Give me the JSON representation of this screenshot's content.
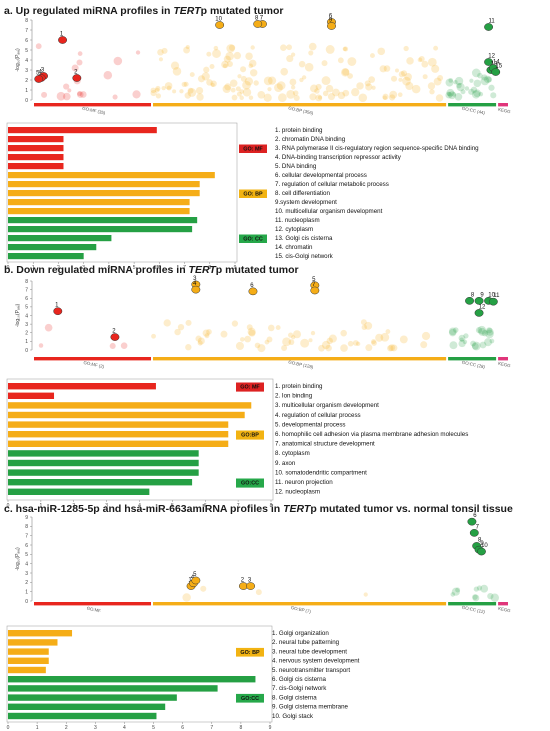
{
  "colors": {
    "mf": "#e8261e",
    "bp": "#f5ad17",
    "cc": "#25a044",
    "kegg": "#e0357a",
    "mf_label": "#dd2222",
    "bp_label": "#f2b312",
    "cc_label": "#26a84a"
  },
  "panels": [
    {
      "title_pre": "a. Up regulated miRNA profiles in ",
      "title_em": "TERT",
      "title_post": "p mutated tumor",
      "manhattan": {
        "ylabel": "-log₁₀(Pₐₑⱼ)",
        "yticks": [
          "0",
          "1",
          "2",
          "3",
          "4",
          "5",
          "6",
          "7",
          "8"
        ],
        "ymax": 8,
        "segments": [
          {
            "label": "GO:MF (35)",
            "color": "mf"
          },
          {
            "label": "GO:BP (356)",
            "color": "bp"
          },
          {
            "label": "GO:CC (44)",
            "color": "cc"
          },
          {
            "label": "KEGG",
            "color": "kegg"
          }
        ],
        "points": [
          {
            "n": "1",
            "x": 0.06,
            "y": 6,
            "c": "mf"
          },
          {
            "n": "2",
            "x": 0.09,
            "y": 2.2,
            "c": "mf"
          },
          {
            "n": "3",
            "x": 0.02,
            "y": 2.4,
            "c": "mf"
          },
          {
            "n": "4",
            "x": 0.015,
            "y": 2.2,
            "c": "mf"
          },
          {
            "n": "5",
            "x": 0.01,
            "y": 2.1,
            "c": "mf"
          },
          {
            "n": "10",
            "x": 0.39,
            "y": 7.5,
            "c": "bp"
          },
          {
            "n": "7",
            "x": 0.48,
            "y": 7.6,
            "c": "bp"
          },
          {
            "n": "8",
            "x": 0.47,
            "y": 7.6,
            "c": "bp"
          },
          {
            "n": "6",
            "x": 0.625,
            "y": 7.8,
            "c": "bp"
          },
          {
            "n": "9",
            "x": 0.625,
            "y": 7.4,
            "c": "bp"
          },
          {
            "n": "11",
            "x": 0.955,
            "y": 7.3,
            "c": "cc"
          },
          {
            "n": "12",
            "x": 0.955,
            "y": 3.8,
            "c": "cc"
          },
          {
            "n": "13",
            "x": 0.96,
            "y": 3,
            "c": "cc"
          },
          {
            "n": "14",
            "x": 0.965,
            "y": 3.2,
            "c": "cc"
          },
          {
            "n": "15",
            "x": 0.97,
            "y": 2.8,
            "c": "cc"
          }
        ]
      },
      "bars": {
        "xticks": [
          "0",
          "1",
          "2",
          "3",
          "4",
          "5",
          "6",
          "7",
          "8",
          "9"
        ],
        "xmax": 9,
        "values": [
          5.9,
          2.2,
          2.2,
          2.2,
          2.2,
          8.2,
          7.6,
          7.6,
          7.2,
          7.2,
          7.5,
          7.3,
          4.1,
          3.5,
          3.0
        ],
        "groups": [
          "mf",
          "mf",
          "mf",
          "mf",
          "mf",
          "bp",
          "bp",
          "bp",
          "bp",
          "bp",
          "cc",
          "cc",
          "cc",
          "cc",
          "cc"
        ],
        "labels": [
          "1. protein binding",
          "2. chromatin DNA binding",
          "3. RNA polymerase II cis-regulatory region sequence-specific DNA binding",
          "4. DNA-binding transcription repressor activity",
          "5. DNA binding",
          "6. cellular developmental process",
          "7. regulation of cellular metabolic process",
          "8. cell differentiation",
          "9.system development",
          "10. multicellular organism development",
          "11. nucleoplasm",
          "12. cytoplasm",
          "13. Golgi cis cisterna",
          "14. chromatin",
          "15. cis-Golgi network"
        ],
        "categories": [
          {
            "text": "GO: MF",
            "color": "mf_label",
            "row": 2
          },
          {
            "text": "GO: BP",
            "color": "bp_label",
            "row": 7
          },
          {
            "text": "GO: CC",
            "color": "cc_label",
            "row": 12
          }
        ]
      }
    },
    {
      "title_pre": "b. Down regulated miRNA profiles in ",
      "title_em": "TERT",
      "title_post": "p mutated tumor",
      "manhattan": {
        "ylabel": "-log₁₀(Pₐₑⱼ)",
        "yticks": [
          "0",
          "1",
          "2",
          "3",
          "4",
          "5",
          "6",
          "7",
          "8"
        ],
        "ymax": 8,
        "segments": [
          {
            "label": "GO:MF (2)",
            "color": "mf"
          },
          {
            "label": "GO:BP (128)",
            "color": "bp"
          },
          {
            "label": "GO:CC (28)",
            "color": "cc"
          },
          {
            "label": "KEGG",
            "color": "kegg"
          }
        ],
        "points": [
          {
            "n": "1",
            "x": 0.05,
            "y": 4.5,
            "c": "mf"
          },
          {
            "n": "2",
            "x": 0.17,
            "y": 1.5,
            "c": "mf"
          },
          {
            "n": "3",
            "x": 0.34,
            "y": 7.6,
            "c": "bp"
          },
          {
            "n": "4",
            "x": 0.34,
            "y": 7.0,
            "c": "bp"
          },
          {
            "n": "6",
            "x": 0.46,
            "y": 6.8,
            "c": "bp"
          },
          {
            "n": "5",
            "x": 0.59,
            "y": 7.5,
            "c": "bp"
          },
          {
            "n": "7",
            "x": 0.59,
            "y": 6.9,
            "c": "bp"
          },
          {
            "n": "8",
            "x": 0.915,
            "y": 5.7,
            "c": "cc"
          },
          {
            "n": "9",
            "x": 0.935,
            "y": 5.7,
            "c": "cc"
          },
          {
            "n": "10",
            "x": 0.955,
            "y": 5.7,
            "c": "cc"
          },
          {
            "n": "11",
            "x": 0.965,
            "y": 5.6,
            "c": "cc"
          },
          {
            "n": "12",
            "x": 0.935,
            "y": 4.3,
            "c": "cc"
          }
        ]
      },
      "bars": {
        "xticks": [
          "0",
          "1",
          "2",
          "3",
          "4",
          "5",
          "6",
          "7",
          "8"
        ],
        "xmax": 8,
        "values": [
          4.5,
          1.4,
          7.4,
          7.2,
          6.7,
          6.7,
          6.7,
          5.8,
          5.8,
          5.8,
          5.6,
          4.3
        ],
        "groups": [
          "mf",
          "mf",
          "bp",
          "bp",
          "bp",
          "bp",
          "bp",
          "cc",
          "cc",
          "cc",
          "cc",
          "cc"
        ],
        "labels": [
          "1. protein binding",
          "2. Ion binding",
          "3. multicellular organism development",
          "4. regulation of cellular process",
          "5. developmental process",
          "6. homophilic cell adhesion via plasma membrane adhesion molecules",
          "7. anatomical structure development",
          "8. cytoplasm",
          "9. axon",
          "10. somatodendritic compartment",
          "11. neuron projection",
          "12. nucleoplasm"
        ],
        "categories": [
          {
            "text": "GO: MF",
            "color": "mf_label",
            "row": 0
          },
          {
            "text": "GO:BP",
            "color": "bp_label",
            "row": 5
          },
          {
            "text": "GO:CC",
            "color": "cc_label",
            "row": 10
          }
        ]
      }
    },
    {
      "title_pre": "c. hsa-miR-1285-5p and hsa-miR-663amiRNA profiles in ",
      "title_em": "TERT",
      "title_post": "p mutated tumor vs. normal tonsil tissue",
      "manhattan": {
        "ylabel": "-log₁₀(Pₐₑⱼ)",
        "yticks": [
          "0",
          "1",
          "2",
          "3",
          "4",
          "5",
          "6",
          "7",
          "8",
          "9"
        ],
        "ymax": 9,
        "segments": [
          {
            "label": "GO:MF",
            "color": "mf"
          },
          {
            "label": "GO:BP (7)",
            "color": "bp"
          },
          {
            "label": "GO:CC (12)",
            "color": "cc"
          },
          {
            "label": "KEGG",
            "color": "kegg"
          }
        ],
        "points": [
          {
            "n": "1",
            "x": 0.33,
            "y": 1.6,
            "c": "bp"
          },
          {
            "n": "2",
            "x": 0.44,
            "y": 1.6,
            "c": "bp"
          },
          {
            "n": "3",
            "x": 0.455,
            "y": 1.6,
            "c": "bp"
          },
          {
            "n": "4",
            "x": 0.335,
            "y": 1.9,
            "c": "bp"
          },
          {
            "n": "5",
            "x": 0.34,
            "y": 2.2,
            "c": "bp"
          },
          {
            "n": "6",
            "x": 0.92,
            "y": 8.5,
            "c": "cc"
          },
          {
            "n": "7",
            "x": 0.925,
            "y": 7.3,
            "c": "cc"
          },
          {
            "n": "8",
            "x": 0.93,
            "y": 5.9,
            "c": "cc"
          },
          {
            "n": "9",
            "x": 0.935,
            "y": 5.5,
            "c": "cc"
          },
          {
            "n": "10",
            "x": 0.94,
            "y": 5.3,
            "c": "cc"
          }
        ]
      },
      "bars": {
        "xticks": [
          "0",
          "1",
          "2",
          "3",
          "4",
          "5",
          "6",
          "7",
          "8",
          "9"
        ],
        "xmax": 9,
        "values": [
          2.2,
          1.7,
          1.4,
          1.4,
          1.3,
          8.5,
          7.2,
          5.8,
          5.4,
          5.1
        ],
        "groups": [
          "bp",
          "bp",
          "bp",
          "bp",
          "bp",
          "cc",
          "cc",
          "cc",
          "cc",
          "cc"
        ],
        "labels": [
          "1. Golgi organization",
          "2. neural tube patterning",
          "3. neural tube development",
          "4. nervous system development",
          "5. neurotransmitter transport",
          "6. Golgi cis cisterna",
          "7. cis-Golgi network",
          "8. Golgi cisterna",
          "9. Golgi cisterna membrane",
          "10. Golgi stack"
        ],
        "categories": [
          {
            "text": "GO: BP",
            "color": "bp_label",
            "row": 2
          },
          {
            "text": "GO:CC",
            "color": "cc_label",
            "row": 7
          }
        ]
      }
    }
  ],
  "chart_data": [
    {
      "type": "scatter",
      "title": "a. Up regulated miRNA profiles in TERTp mutated tumor",
      "ylabel": "-log10(Padj)",
      "ylim": [
        0,
        8
      ],
      "x": [
        "GO:MF (35)",
        "GO:BP (356)",
        "GO:CC (44)",
        "KEGG"
      ]
    },
    {
      "type": "bar",
      "title": "a. Up regulated miRNA profiles in TERTp mutated tumor",
      "xlim": [
        0,
        9
      ],
      "categories": [
        "1",
        "2",
        "3",
        "4",
        "5",
        "6",
        "7",
        "8",
        "9",
        "10",
        "11",
        "12",
        "13",
        "14",
        "15"
      ],
      "values": [
        5.9,
        2.2,
        2.2,
        2.2,
        2.2,
        8.2,
        7.6,
        7.6,
        7.2,
        7.2,
        7.5,
        7.3,
        4.1,
        3.5,
        3.0
      ]
    },
    {
      "type": "scatter",
      "title": "b. Down regulated miRNA profiles in TERTp mutated tumor",
      "ylabel": "-log10(Padj)",
      "ylim": [
        0,
        8
      ],
      "x": [
        "GO:MF (2)",
        "GO:BP (128)",
        "GO:CC (28)",
        "KEGG"
      ]
    },
    {
      "type": "bar",
      "title": "b. Down regulated miRNA profiles in TERTp mutated tumor",
      "xlim": [
        0,
        8
      ],
      "categories": [
        "1",
        "2",
        "3",
        "4",
        "5",
        "6",
        "7",
        "8",
        "9",
        "10",
        "11",
        "12"
      ],
      "values": [
        4.5,
        1.4,
        7.4,
        7.2,
        6.7,
        6.7,
        6.7,
        5.8,
        5.8,
        5.8,
        5.6,
        4.3
      ]
    },
    {
      "type": "scatter",
      "title": "c. hsa-miR-1285-5p and hsa-miR-663amiRNA profiles in TERTp mutated tumor vs. normal tonsil tissue",
      "ylabel": "-log10(Padj)",
      "ylim": [
        0,
        9
      ],
      "x": [
        "GO:MF",
        "GO:BP (7)",
        "GO:CC (12)",
        "KEGG"
      ]
    },
    {
      "type": "bar",
      "title": "c. hsa-miR-1285-5p and hsa-miR-663amiRNA profiles in TERTp mutated tumor vs. normal tonsil tissue",
      "xlim": [
        0,
        9
      ],
      "categories": [
        "1",
        "2",
        "3",
        "4",
        "5",
        "6",
        "7",
        "8",
        "9",
        "10"
      ],
      "values": [
        2.2,
        1.7,
        1.4,
        1.4,
        1.3,
        8.5,
        7.2,
        5.8,
        5.4,
        5.1
      ]
    }
  ]
}
